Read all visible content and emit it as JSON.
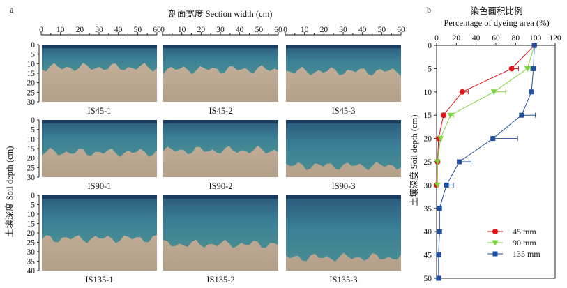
{
  "figure": {
    "panel_a_letter": "a",
    "panel_b_letter": "b"
  },
  "colors": {
    "series_45": "#e0141b",
    "series_90": "#7fd33a",
    "series_135": "#1f4f9e",
    "dye_blue": "#2e6f8f",
    "soil_tan": "#b9a58e"
  },
  "photo_panel": {
    "top_axis_label": "剖面宽度 Section width (cm)",
    "left_axis_label": "土壤深度 Soil depth (cm)",
    "x_ticks": [
      "0",
      "10",
      "20",
      "30",
      "40",
      "50",
      "60"
    ],
    "row_depth_ticks": [
      [
        "0",
        "5",
        "10",
        "15",
        "20",
        "25",
        "30"
      ],
      [
        "0",
        "5",
        "10",
        "15",
        "20",
        "25",
        "30"
      ],
      [
        "0",
        "5",
        "10",
        "15",
        "20",
        "25",
        "30",
        "35",
        "40"
      ]
    ],
    "photos": [
      {
        "label": "IS45-1"
      },
      {
        "label": "IS45-2"
      },
      {
        "label": "IS45-3"
      },
      {
        "label": "IS90-1"
      },
      {
        "label": "IS90-2"
      },
      {
        "label": "IS90-3"
      },
      {
        "label": "IS135-1"
      },
      {
        "label": "IS135-2"
      },
      {
        "label": "IS135-3"
      }
    ]
  },
  "chart_data": {
    "type": "line",
    "title_cn": "染色面积比例",
    "title_en": "Percentage of dyeing area (%)",
    "xlabel": "Percentage of dyeing area (%)",
    "ylabel": "土壤深度 Soil depth (cm)",
    "xlim": [
      0,
      120
    ],
    "ylim": [
      0,
      50
    ],
    "y_inverted": true,
    "x_axis_position": "top",
    "x_ticks": [
      "0",
      "20",
      "40",
      "60",
      "80",
      "100",
      "120"
    ],
    "y_ticks": [
      "0",
      "5",
      "10",
      "15",
      "20",
      "25",
      "30",
      "35",
      "40",
      "45",
      "50"
    ],
    "legend_position": "bottom-right",
    "series": [
      {
        "name": "45 mm",
        "marker": "circle",
        "color": "#e0141b",
        "points": [
          {
            "x": 99,
            "y": 0,
            "err": 0
          },
          {
            "x": 76,
            "y": 5,
            "err": 7
          },
          {
            "x": 26,
            "y": 10,
            "err": 6
          },
          {
            "x": 7,
            "y": 15,
            "err": 2
          },
          {
            "x": 2,
            "y": 20,
            "err": 1
          },
          {
            "x": 1,
            "y": 25,
            "err": 0
          },
          {
            "x": 0,
            "y": 30,
            "err": 0
          }
        ]
      },
      {
        "name": "90 mm",
        "marker": "triangle-down",
        "color": "#7fd33a",
        "points": [
          {
            "x": 99,
            "y": 0,
            "err": 0
          },
          {
            "x": 92,
            "y": 5,
            "err": 3
          },
          {
            "x": 58,
            "y": 10,
            "err": 12
          },
          {
            "x": 14,
            "y": 15,
            "err": 3
          },
          {
            "x": 4,
            "y": 20,
            "err": 1
          },
          {
            "x": 1,
            "y": 25,
            "err": 0
          },
          {
            "x": 1,
            "y": 30,
            "err": 0
          }
        ]
      },
      {
        "name": "135 mm",
        "marker": "square",
        "color": "#1f4f9e",
        "points": [
          {
            "x": 99,
            "y": 0,
            "err": 0
          },
          {
            "x": 98,
            "y": 5,
            "err": 0
          },
          {
            "x": 96,
            "y": 10,
            "err": 0
          },
          {
            "x": 86,
            "y": 15,
            "err": 14
          },
          {
            "x": 57,
            "y": 20,
            "err": 25
          },
          {
            "x": 23,
            "y": 25,
            "err": 12
          },
          {
            "x": 10,
            "y": 30,
            "err": 7
          },
          {
            "x": 3,
            "y": 35,
            "err": 0
          },
          {
            "x": 3,
            "y": 40,
            "err": 0
          },
          {
            "x": 2,
            "y": 45,
            "err": 0
          },
          {
            "x": 2,
            "y": 50,
            "err": 0
          }
        ]
      }
    ]
  }
}
